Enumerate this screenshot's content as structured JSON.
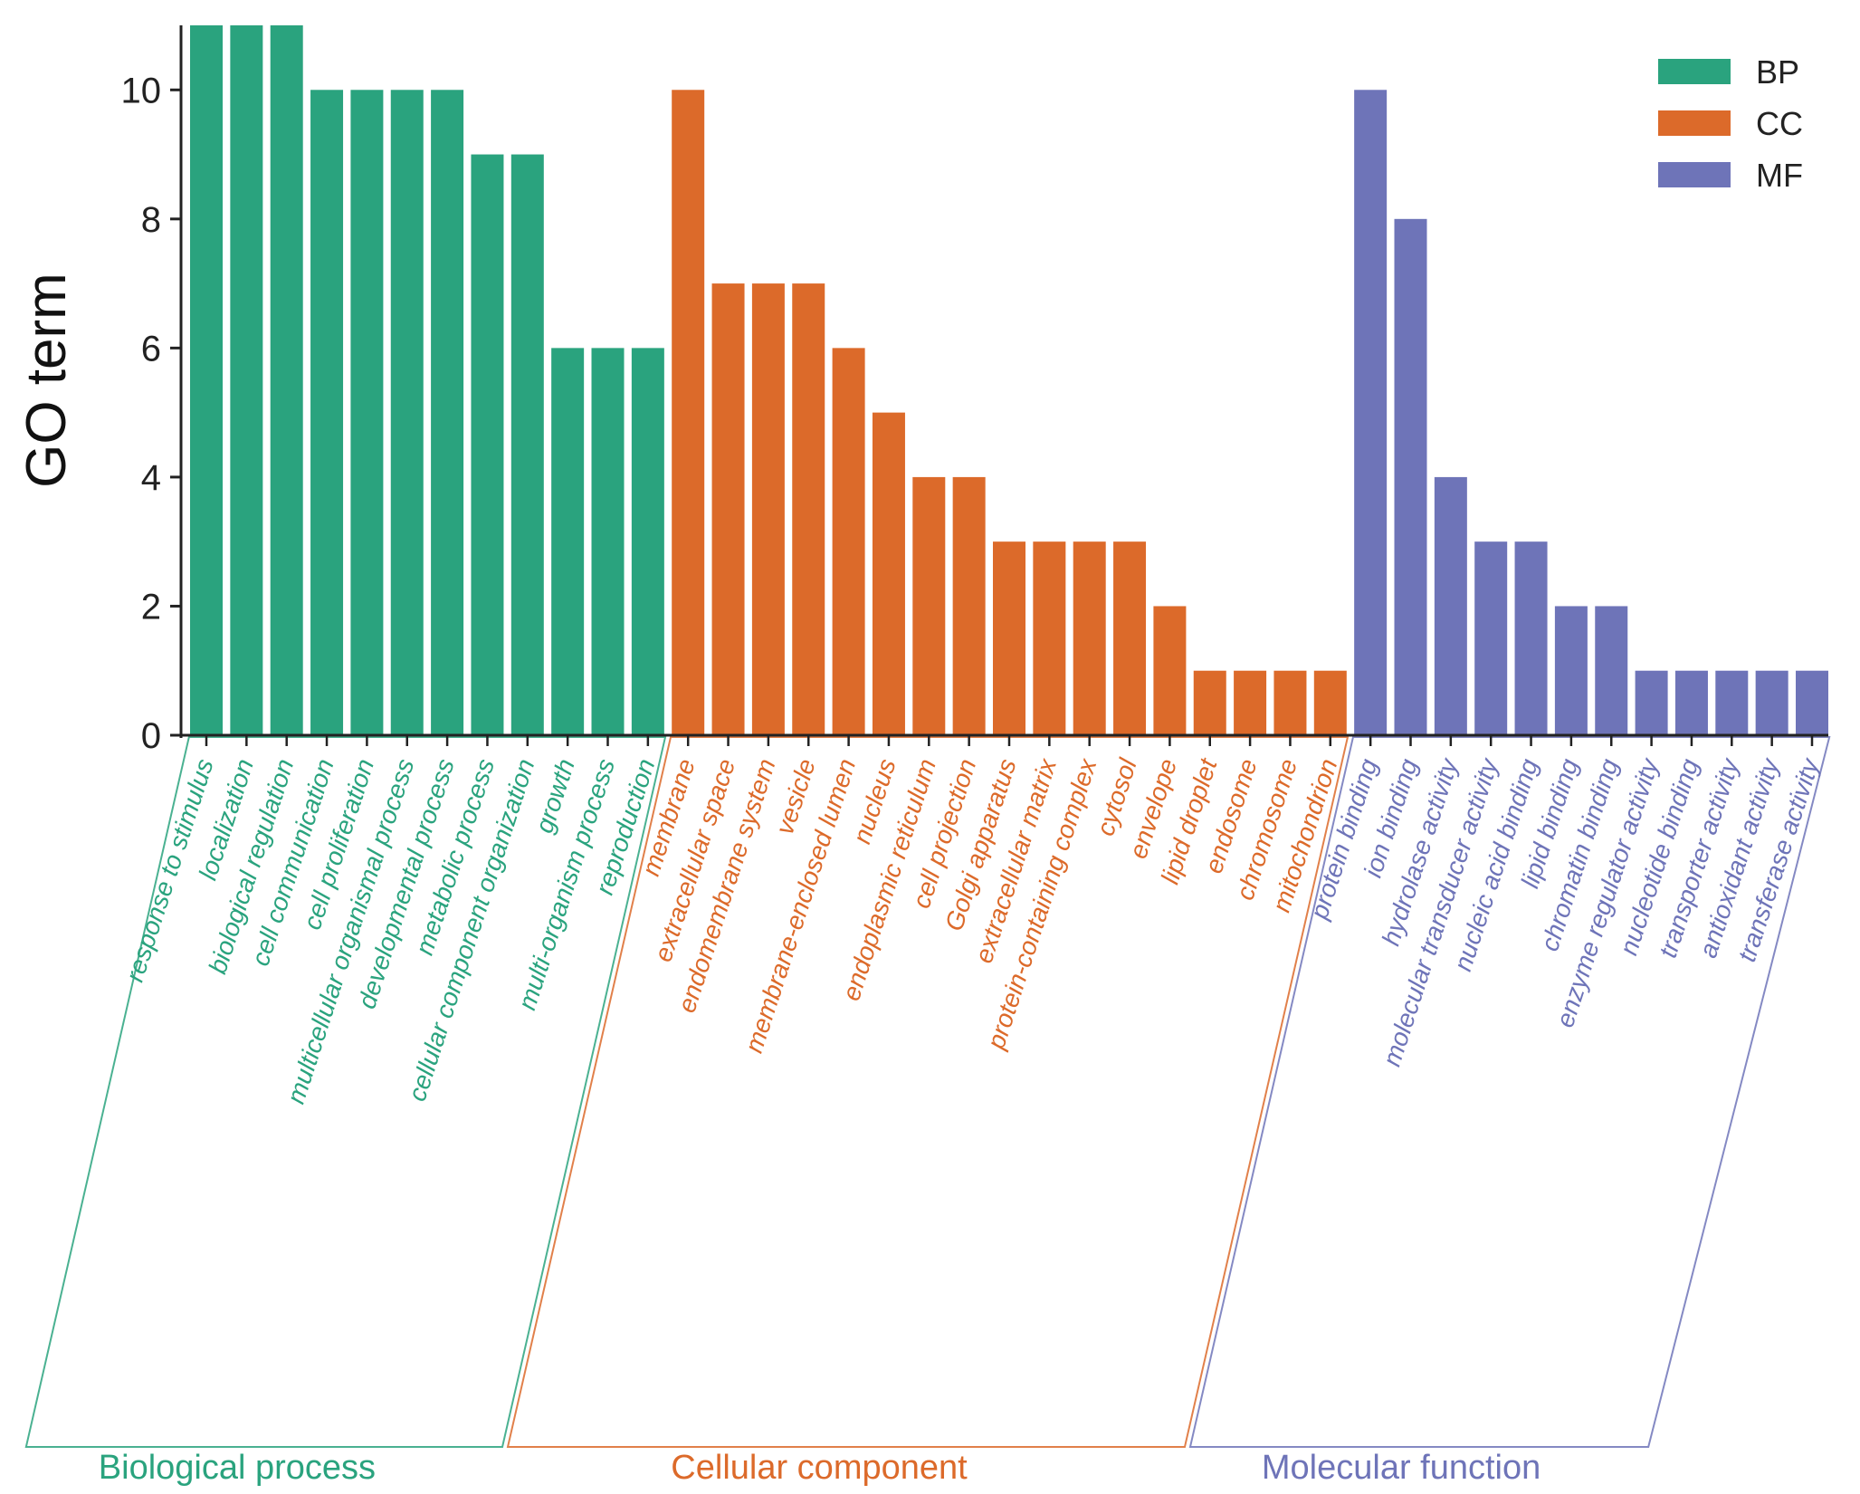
{
  "chart_data": {
    "type": "bar",
    "title": "",
    "xlabel": "",
    "ylabel": "GO term",
    "ylim": [
      0,
      11
    ],
    "yticks": [
      0,
      2,
      4,
      6,
      8,
      10
    ],
    "legend": {
      "position": "top-right",
      "entries": [
        "BP",
        "CC",
        "MF"
      ]
    },
    "series": [
      {
        "name": "BP",
        "group_label": "Biological process",
        "color": "#2aa37e",
        "categories": [
          "response to stimulus",
          "localization",
          "biological regulation",
          "cell communication",
          "cell proliferation",
          "multicellular organismal process",
          "developmental process",
          "metabolic process",
          "cellular component organization",
          "growth",
          "multi-organism process",
          "reproduction"
        ],
        "values": [
          11,
          11,
          11,
          10,
          10,
          10,
          10,
          9,
          9,
          6,
          6,
          6
        ]
      },
      {
        "name": "CC",
        "group_label": "Cellular component",
        "color": "#dc6a2a",
        "categories": [
          "membrane",
          "extracellular space",
          "endomembrane system",
          "vesicle",
          "membrane-enclosed lumen",
          "nucleus",
          "endoplasmic reticulum",
          "cell projection",
          "Golgi apparatus",
          "extracellular matrix",
          "protein-containing complex",
          "cytosol",
          "envelope",
          "lipid droplet",
          "endosome",
          "chromosome",
          "mitochondrion"
        ],
        "values": [
          10,
          7,
          7,
          7,
          6,
          5,
          4,
          4,
          3,
          3,
          3,
          3,
          2,
          1,
          1,
          1,
          1
        ]
      },
      {
        "name": "MF",
        "group_label": "Molecular function",
        "color": "#6e74b8",
        "categories": [
          "protein binding",
          "ion binding",
          "hydrolase activity",
          "molecular transducer activity",
          "nucleic acid binding",
          "lipid binding",
          "chromatin binding",
          "enzyme regulator activity",
          "nucleotide binding",
          "transporter activity",
          "antioxidant activity",
          "transferase activity"
        ],
        "values": [
          10,
          8,
          4,
          3,
          3,
          2,
          2,
          1,
          1,
          1,
          1,
          1
        ]
      }
    ]
  }
}
